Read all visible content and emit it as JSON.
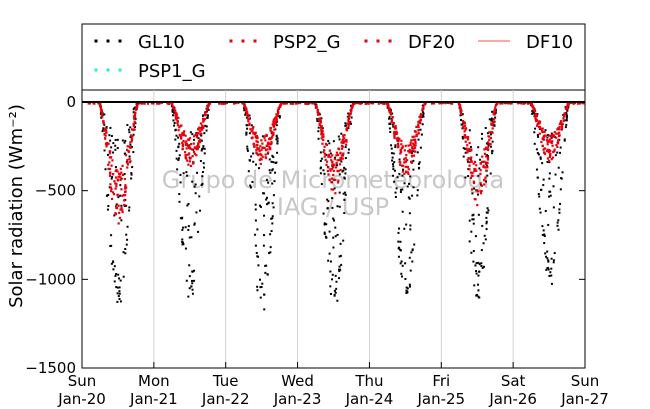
{
  "chart_data": {
    "type": "scatter",
    "ylabel": "Solar radiation (Wm⁻²)",
    "ylim": [
      -1500,
      0
    ],
    "yticks": [
      {
        "value": 0,
        "label": "0"
      },
      {
        "value": -500,
        "label": "−500"
      },
      {
        "value": -1000,
        "label": "−1000"
      },
      {
        "value": -1500,
        "label": "−1500"
      }
    ],
    "xlim": [
      0,
      7
    ],
    "xticks": [
      {
        "value": 0,
        "label1": "Sun",
        "label2": "Jan-20"
      },
      {
        "value": 1,
        "label1": "Mon",
        "label2": "Jan-21"
      },
      {
        "value": 2,
        "label1": "Tue",
        "label2": "Jan-22"
      },
      {
        "value": 3,
        "label1": "Wed",
        "label2": "Jan-23"
      },
      {
        "value": 4,
        "label1": "Thu",
        "label2": "Jan-24"
      },
      {
        "value": 5,
        "label1": "Fri",
        "label2": "Jan-25"
      },
      {
        "value": 6,
        "label1": "Sat",
        "label2": "Jan-26"
      },
      {
        "value": 7,
        "label1": "Sun",
        "label2": "Jan-27"
      }
    ],
    "grid": "vertical",
    "legend_position": "top",
    "series": [
      {
        "name": "GL10",
        "color": "#000000",
        "style": "dotted"
      },
      {
        "name": "PSP2_G",
        "color": "#e8000b",
        "style": "dotted"
      },
      {
        "name": "DF20",
        "color": "#e8000b",
        "style": "dotted"
      },
      {
        "name": "DF10",
        "color": "#ff6f6f",
        "style": "line"
      },
      {
        "name": "PSP1_G",
        "color": "#2ee6d6",
        "style": "dotted"
      }
    ],
    "daily_peak_gl10": [
      {
        "day": "Jan-20",
        "peak": -1160
      },
      {
        "day": "Jan-21",
        "peak": -1130
      },
      {
        "day": "Jan-22",
        "peak": -1190
      },
      {
        "day": "Jan-23",
        "peak": -1180
      },
      {
        "day": "Jan-24",
        "peak": -1130
      },
      {
        "day": "Jan-25",
        "peak": -1120
      },
      {
        "day": "Jan-26",
        "peak": -1060
      }
    ],
    "daily_peak_diffuse": [
      {
        "day": "Jan-20",
        "peak": -680
      },
      {
        "day": "Jan-21",
        "peak": -360
      },
      {
        "day": "Jan-22",
        "peak": -350
      },
      {
        "day": "Jan-23",
        "peak": -510
      },
      {
        "day": "Jan-24",
        "peak": -420
      },
      {
        "day": "Jan-25",
        "peak": -580
      },
      {
        "day": "Jan-26",
        "peak": -330
      }
    ]
  },
  "watermark": {
    "line1": "Grupo de Micrometeorologia",
    "line2": "IAG / USP"
  }
}
